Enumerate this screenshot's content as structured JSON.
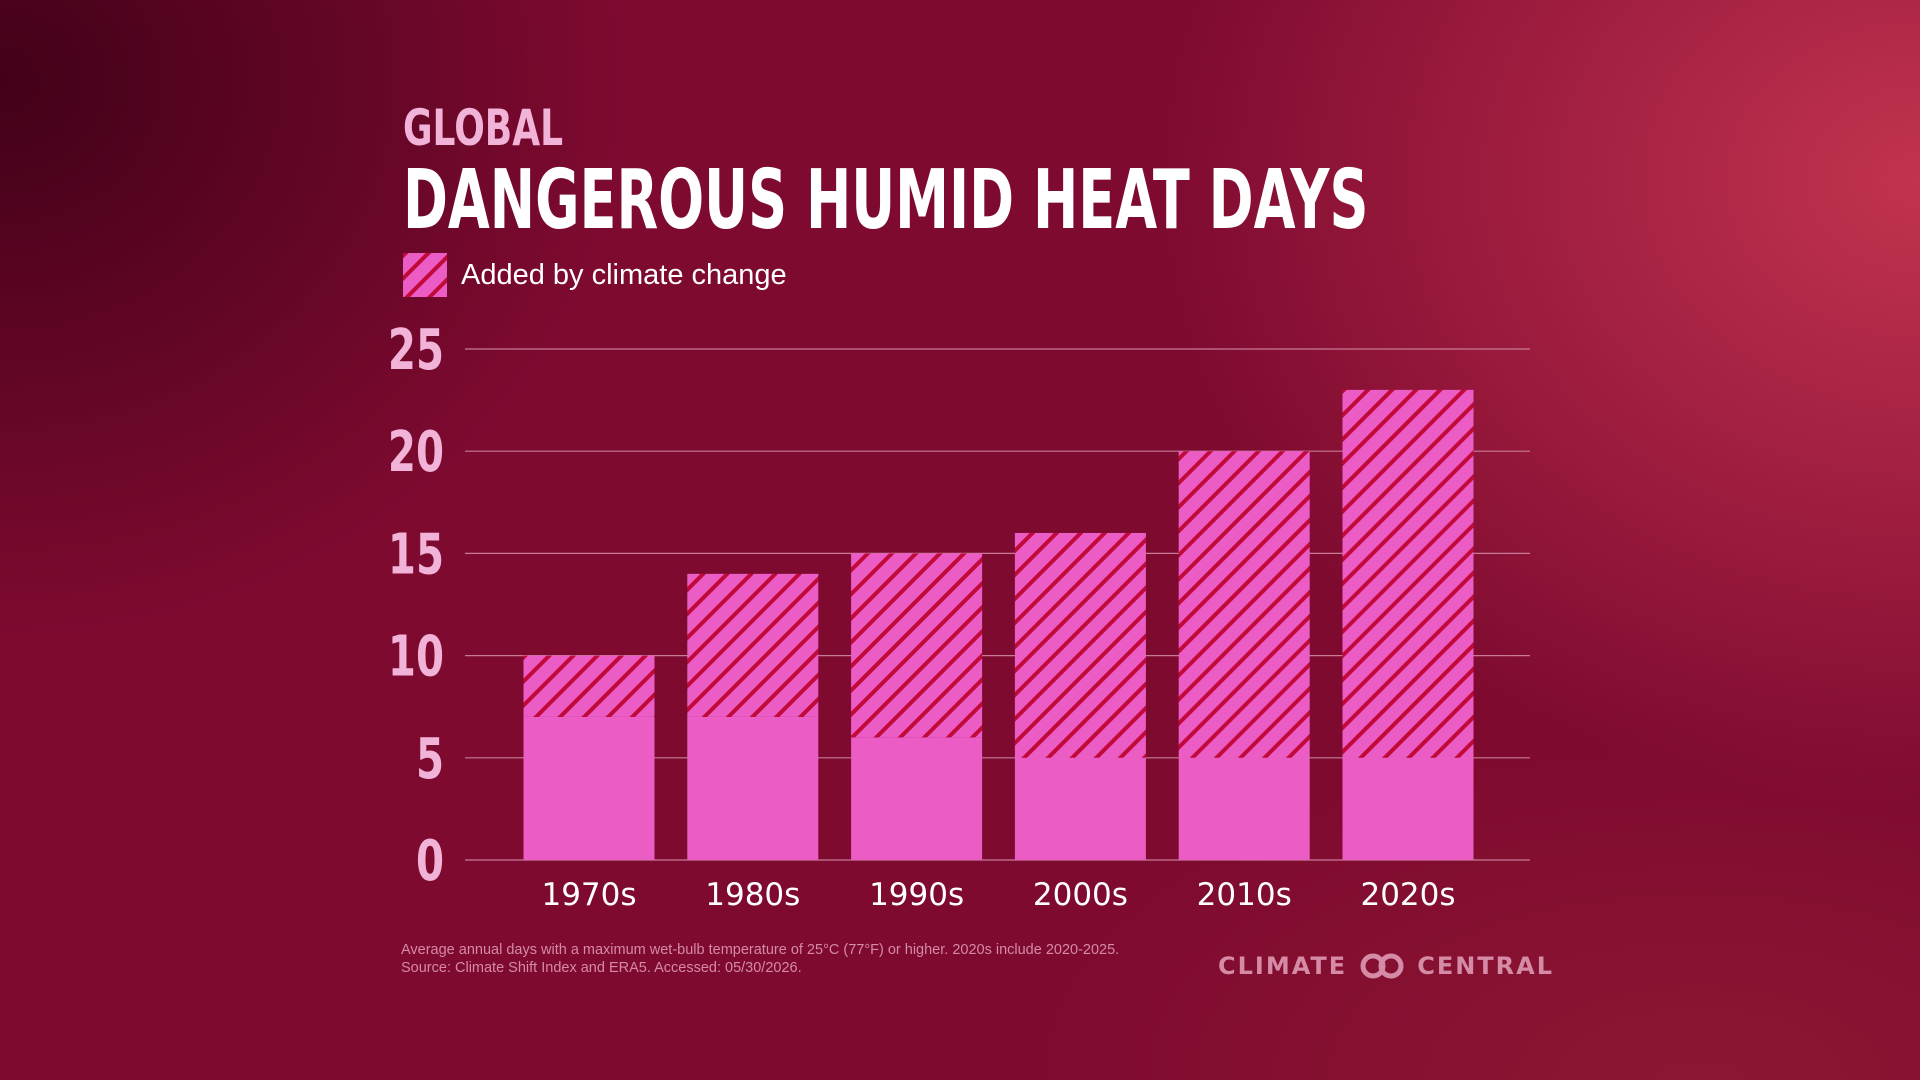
{
  "header": {
    "subtitle": "GLOBAL",
    "title": "DANGEROUS HUMID HEAT DAYS"
  },
  "legend": {
    "label": "Added by climate change"
  },
  "colors": {
    "bar_base": "#eb5cc5",
    "bar_hatch_bg": "#eb5cc5",
    "bar_hatch_stripe": "#c10a3a",
    "grid": "#c87a98",
    "ytick": "#f1b3d8"
  },
  "chart_data": {
    "type": "bar",
    "stacked": true,
    "categories": [
      "1970s",
      "1980s",
      "1990s",
      "2000s",
      "2010s",
      "2020s"
    ],
    "series": [
      {
        "values": [
          7,
          7,
          6,
          5,
          5,
          5
        ]
      },
      {
        "name": "Added by climate change",
        "pattern": "diagonal-hatch",
        "values": [
          3,
          7,
          9,
          11,
          15,
          18
        ]
      }
    ],
    "totals": [
      10,
      14,
      15,
      16,
      20,
      23
    ],
    "ylim": [
      0,
      25
    ],
    "yticks": [
      "0",
      "5",
      "10",
      "15",
      "20",
      "25"
    ],
    "grid": true,
    "legend_position": "top-left"
  },
  "footnote": {
    "line1": "Average annual days with a maximum wet-bulb temperature of 25°C (77°F) or higher. 2020s include 2020-2025.",
    "line2": "Source: Climate Shift Index and ERA5. Accessed: 05/30/2026."
  },
  "brand": {
    "left": "CLIMATE",
    "right": "CENTRAL",
    "logo_icon": "interlocking-rings-icon"
  }
}
